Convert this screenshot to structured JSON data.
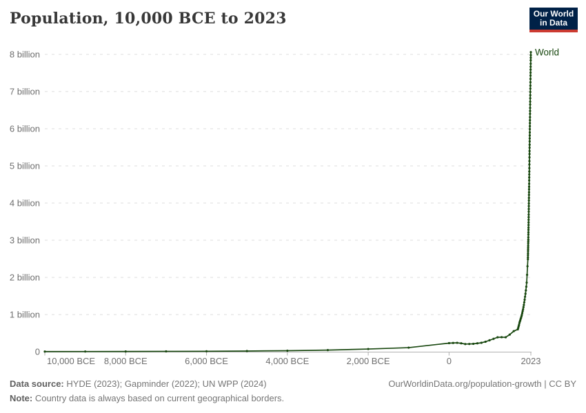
{
  "header": {
    "title": "Population, 10,000 BCE to 2023",
    "logo": {
      "line1": "Our World",
      "line2": "in Data"
    }
  },
  "chart_data": {
    "type": "line",
    "title": "Population, 10,000 BCE to 2023",
    "entity_label": "World",
    "legend_position": "end-of-line",
    "grid": true,
    "x_axis": {
      "min": -10000,
      "max": 2023,
      "ticks": [
        {
          "year": -10000,
          "label": "10,000 BCE",
          "align": "start"
        },
        {
          "year": -8000,
          "label": "8,000 BCE",
          "align": "middle"
        },
        {
          "year": -6000,
          "label": "6,000 BCE",
          "align": "middle"
        },
        {
          "year": -4000,
          "label": "4,000 BCE",
          "align": "middle"
        },
        {
          "year": -2000,
          "label": "2,000 BCE",
          "align": "middle"
        },
        {
          "year": 0,
          "label": "0",
          "align": "middle"
        },
        {
          "year": 2023,
          "label": "2023",
          "align": "middle"
        }
      ]
    },
    "y_axis": {
      "min_billions": 0,
      "max_billions": 8,
      "ticks": [
        {
          "value": 0,
          "label": "0"
        },
        {
          "value": 1,
          "label": "1 billion"
        },
        {
          "value": 2,
          "label": "2 billion"
        },
        {
          "value": 3,
          "label": "3 billion"
        },
        {
          "value": 4,
          "label": "4 billion"
        },
        {
          "value": 5,
          "label": "5 billion"
        },
        {
          "value": 6,
          "label": "6 billion"
        },
        {
          "value": 7,
          "label": "7 billion"
        },
        {
          "value": 8,
          "label": "8 billion"
        }
      ]
    },
    "series": [
      {
        "name": "World",
        "color": "#18470F",
        "years": [
          -10000,
          -9000,
          -8000,
          -7000,
          -6000,
          -5000,
          -4000,
          -3000,
          -2000,
          -1000,
          0,
          100,
          200,
          300,
          400,
          500,
          600,
          700,
          800,
          900,
          1000,
          1100,
          1200,
          1300,
          1400,
          1500,
          1600,
          1700,
          1710,
          1720,
          1730,
          1740,
          1750,
          1760,
          1770,
          1780,
          1790,
          1800,
          1810,
          1820,
          1830,
          1840,
          1850,
          1860,
          1870,
          1880,
          1890,
          1900,
          1910,
          1920,
          1930,
          1940,
          1950,
          1951,
          1952,
          1953,
          1954,
          1955,
          1956,
          1957,
          1958,
          1959,
          1960,
          1961,
          1962,
          1963,
          1964,
          1965,
          1966,
          1967,
          1968,
          1969,
          1970,
          1971,
          1972,
          1973,
          1974,
          1975,
          1976,
          1977,
          1978,
          1979,
          1980,
          1981,
          1982,
          1983,
          1984,
          1985,
          1986,
          1987,
          1988,
          1989,
          1990,
          1991,
          1992,
          1993,
          1994,
          1995,
          1996,
          1997,
          1998,
          1999,
          2000,
          2001,
          2002,
          2003,
          2004,
          2005,
          2006,
          2007,
          2008,
          2009,
          2010,
          2011,
          2012,
          2013,
          2014,
          2015,
          2016,
          2017,
          2018,
          2019,
          2020,
          2021,
          2022,
          2023
        ],
        "values_billions": [
          0.004,
          0.006,
          0.007,
          0.01,
          0.013,
          0.019,
          0.028,
          0.044,
          0.073,
          0.11,
          0.232,
          0.236,
          0.24,
          0.227,
          0.207,
          0.209,
          0.213,
          0.227,
          0.241,
          0.269,
          0.308,
          0.347,
          0.389,
          0.392,
          0.39,
          0.461,
          0.554,
          0.603,
          0.64,
          0.68,
          0.72,
          0.77,
          0.81,
          0.84,
          0.88,
          0.91,
          0.95,
          0.99,
          1.04,
          1.09,
          1.14,
          1.2,
          1.26,
          1.33,
          1.4,
          1.48,
          1.56,
          1.65,
          1.75,
          1.86,
          2.07,
          2.3,
          2.49,
          2.54,
          2.6,
          2.65,
          2.71,
          2.76,
          2.81,
          2.86,
          2.92,
          2.97,
          3.02,
          3.08,
          3.15,
          3.21,
          3.28,
          3.34,
          3.41,
          3.48,
          3.55,
          3.62,
          3.69,
          3.77,
          3.84,
          3.92,
          3.99,
          4.07,
          4.14,
          4.22,
          4.29,
          4.37,
          4.44,
          4.52,
          4.61,
          4.69,
          4.77,
          4.85,
          4.94,
          5.04,
          5.13,
          5.23,
          5.32,
          5.4,
          5.49,
          5.57,
          5.66,
          5.74,
          5.82,
          5.9,
          5.99,
          6.07,
          6.15,
          6.23,
          6.31,
          6.4,
          6.48,
          6.56,
          6.65,
          6.73,
          6.82,
          6.9,
          6.99,
          7.08,
          7.16,
          7.25,
          7.34,
          7.43,
          7.51,
          7.59,
          7.67,
          7.75,
          7.84,
          7.91,
          7.98,
          8.06
        ]
      }
    ]
  },
  "footer": {
    "source_label": "Data source:",
    "source_text": " HYDE (2023); Gapminder (2022); UN WPP (2024)",
    "note_label": "Note:",
    "note_text": " Country data is always based on current geographical borders.",
    "link": "OurWorldinData.org/population-growth | CC BY"
  },
  "colors": {
    "line": "#18470F",
    "grid": "#dcdcdc",
    "axis": "#b0b0b0",
    "tick_text": "#6e6e6e",
    "title_text": "#383838",
    "footer_text": "#757575",
    "logo_bg": "#002147",
    "logo_stripe": "#cc3b31"
  }
}
